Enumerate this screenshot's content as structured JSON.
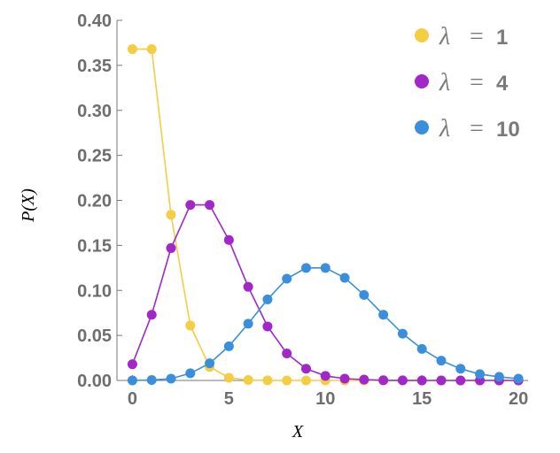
{
  "chart_data": {
    "type": "line",
    "title": "",
    "xlabel": "X",
    "ylabel": "P(X)",
    "xlim": [
      -0.8,
      20.5
    ],
    "ylim": [
      0,
      0.4
    ],
    "x_ticks": [
      "0",
      "5",
      "10",
      "15",
      "20"
    ],
    "y_ticks": [
      "0.00",
      "0.05",
      "0.10",
      "0.15",
      "0.20",
      "0.25",
      "0.30",
      "0.35",
      "0.40"
    ],
    "legend_position": "top-right",
    "grid": false,
    "series": [
      {
        "name": "λ = 1",
        "legend_symbol": "λ",
        "legend_value": "1",
        "color": "#f5cd42",
        "x": [
          0,
          1,
          2,
          3,
          4,
          5,
          6,
          7,
          8,
          9,
          10,
          11,
          12,
          13,
          14,
          15,
          16,
          17,
          18,
          19,
          20
        ],
        "y": [
          0.368,
          0.368,
          0.184,
          0.061,
          0.015,
          0.003,
          0.0005,
          0.0001,
          0,
          0,
          0,
          0,
          0,
          0,
          0,
          0,
          0,
          0,
          0,
          0,
          0
        ]
      },
      {
        "name": "λ = 4",
        "legend_symbol": "λ",
        "legend_value": "4",
        "color": "#a127c9",
        "x": [
          0,
          1,
          2,
          3,
          4,
          5,
          6,
          7,
          8,
          9,
          10,
          11,
          12,
          13,
          14,
          15,
          16,
          17,
          18,
          19,
          20
        ],
        "y": [
          0.018,
          0.073,
          0.147,
          0.195,
          0.195,
          0.156,
          0.104,
          0.06,
          0.03,
          0.013,
          0.005,
          0.002,
          0.001,
          0.0002,
          0.0001,
          0,
          0,
          0,
          0,
          0,
          0
        ]
      },
      {
        "name": "λ = 10",
        "legend_symbol": "λ",
        "legend_value": "10",
        "color": "#3a8fdc",
        "x": [
          0,
          1,
          2,
          3,
          4,
          5,
          6,
          7,
          8,
          9,
          10,
          11,
          12,
          13,
          14,
          15,
          16,
          17,
          18,
          19,
          20
        ],
        "y": [
          5e-05,
          0.0005,
          0.002,
          0.008,
          0.019,
          0.038,
          0.063,
          0.09,
          0.113,
          0.125,
          0.125,
          0.114,
          0.095,
          0.073,
          0.052,
          0.035,
          0.022,
          0.013,
          0.007,
          0.004,
          0.002
        ]
      }
    ]
  }
}
